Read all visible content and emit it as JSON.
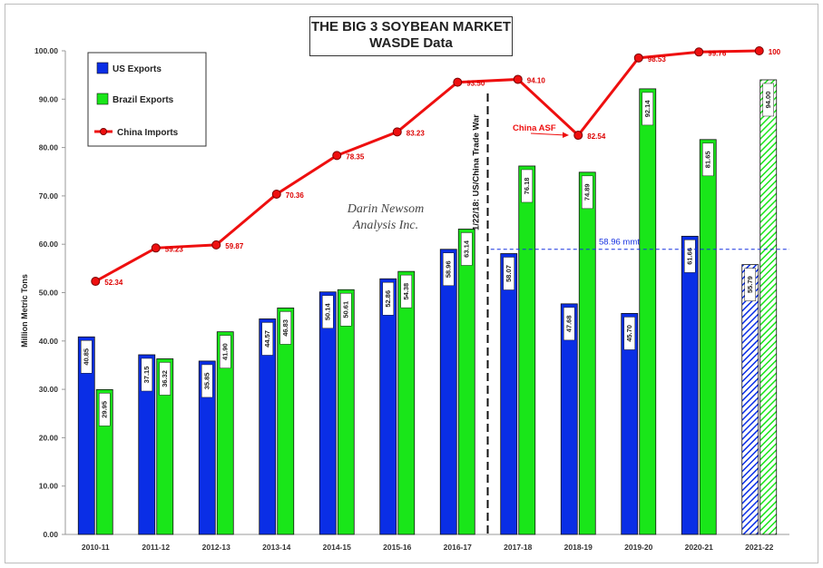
{
  "chart_data": {
    "type": "bar",
    "title": "THE BIG 3 SOYBEAN MARKET",
    "subtitle": "WASDE Data",
    "ylabel": "Million Metric Tons",
    "ylim": [
      0,
      100
    ],
    "yticks": [
      "0.00",
      "10.00",
      "20.00",
      "30.00",
      "40.00",
      "50.00",
      "60.00",
      "70.00",
      "80.00",
      "90.00",
      "100.00"
    ],
    "grid": false,
    "legend_position": "top-left",
    "categories": [
      "2010-11",
      "2011-12",
      "2012-13",
      "2013-14",
      "2014-15",
      "2015-16",
      "2016-17",
      "2017-18",
      "2018-19",
      "2019-20",
      "2020-21",
      "2021-22"
    ],
    "series": [
      {
        "name": "US Exports",
        "type": "bar",
        "color": "#0a2ee6",
        "values": [
          40.85,
          37.15,
          35.85,
          44.57,
          50.14,
          52.86,
          58.96,
          58.07,
          47.68,
          45.7,
          61.66,
          55.79
        ],
        "labels": [
          "40.85",
          "37.15",
          "35.85",
          "44.57",
          "50.14",
          "52.86",
          "58.96",
          "58.07",
          "47.68",
          "45.70",
          "61.66",
          "55.79"
        ],
        "projected_last": true
      },
      {
        "name": "Brazil Exports",
        "type": "bar",
        "color": "#19e619",
        "values": [
          29.95,
          36.32,
          41.9,
          46.83,
          50.61,
          54.38,
          63.14,
          76.18,
          74.89,
          92.14,
          81.65,
          94.0
        ],
        "labels": [
          "29.95",
          "36.32",
          "41.90",
          "46.83",
          "50.61",
          "54.38",
          "63.14",
          "76.18",
          "74.89",
          "92.14",
          "81.65",
          "94.00"
        ],
        "projected_last": true
      },
      {
        "name": "China Imports",
        "type": "line",
        "color": "#ee0f0f",
        "values": [
          52.34,
          59.23,
          59.87,
          70.36,
          78.35,
          83.23,
          93.5,
          94.1,
          82.54,
          98.53,
          99.76,
          100
        ],
        "labels": [
          "52.34",
          "59.23",
          "59.87",
          "70.36",
          "78.35",
          "83.23",
          "93.50",
          "94.10",
          "82.54",
          "98.53",
          "99.76",
          "100"
        ]
      }
    ],
    "reference_line": {
      "value": 58.96,
      "label": "58.96 mmt",
      "color": "#1530e0"
    },
    "annotations": [
      {
        "text": "1/22/18: US/China Trade War",
        "between": [
          "2016-17",
          "2017-18"
        ]
      },
      {
        "text": "China ASF",
        "category": "2018-19",
        "color": "#ee0f0f"
      }
    ],
    "watermark": [
      "Darin Newsom",
      "Analysis Inc."
    ]
  }
}
